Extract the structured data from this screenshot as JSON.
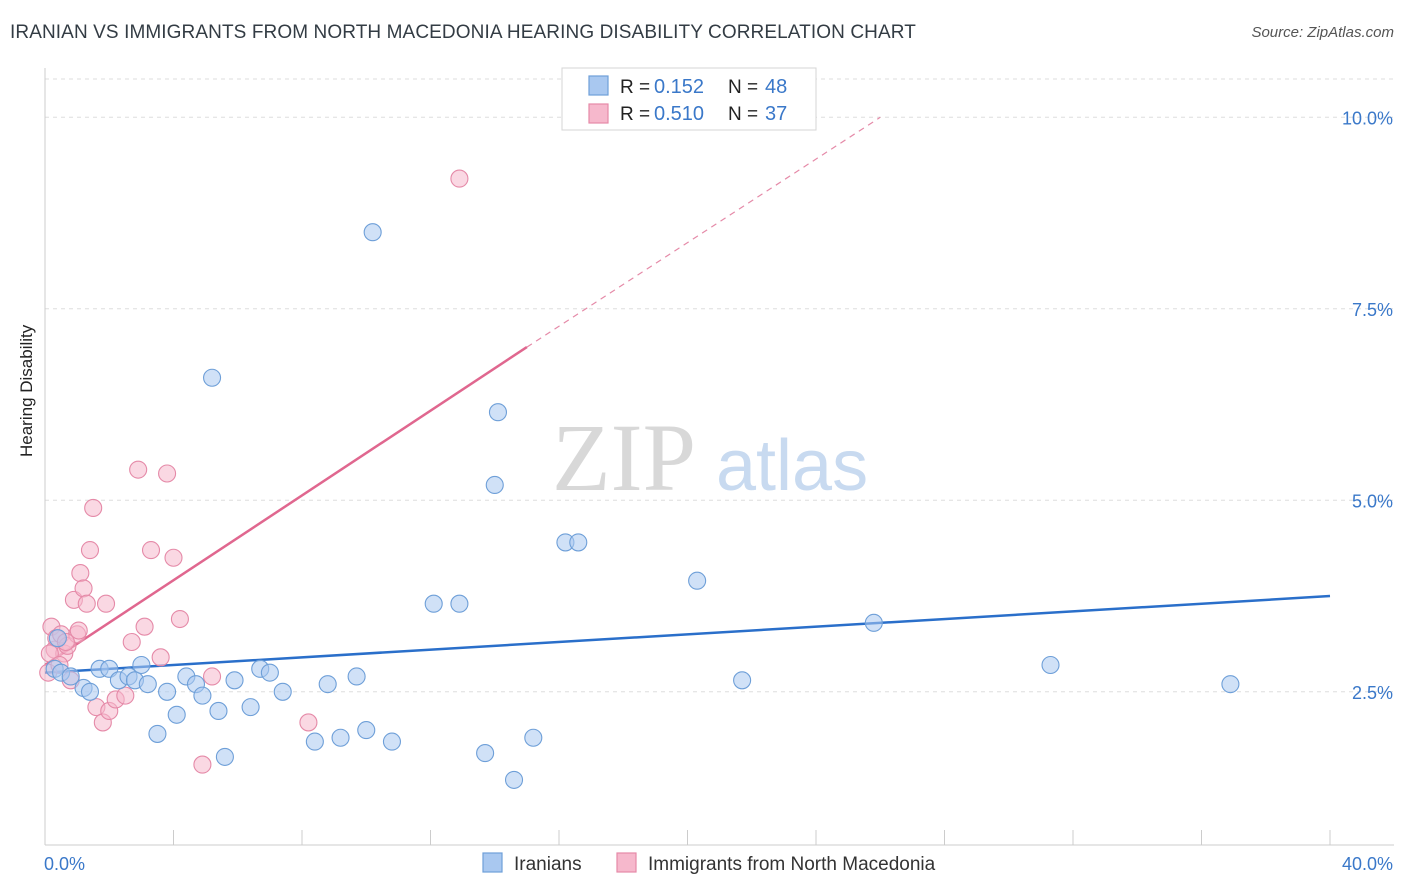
{
  "title": "IRANIAN VS IMMIGRANTS FROM NORTH MACEDONIA HEARING DISABILITY CORRELATION CHART",
  "source": "Source: ZipAtlas.com",
  "watermark": {
    "zip": "ZIP",
    "atlas": "atlas"
  },
  "legend_top": {
    "rows": [
      {
        "r_label": "R = ",
        "r_value": "0.152",
        "n_label": "N = ",
        "n_value": "48"
      },
      {
        "r_label": "R = ",
        "r_value": "0.510",
        "n_label": "N = ",
        "n_value": "37"
      }
    ]
  },
  "legend_bottom": {
    "items": [
      "Iranians",
      "Immigrants from North Macedonia"
    ]
  },
  "colors": {
    "blue_fill": "#a9c8f0",
    "blue_stroke": "#6e9fd8",
    "blue_line": "#2a6fca",
    "pink_fill": "#f6b8cc",
    "pink_stroke": "#e58aa8",
    "pink_line": "#e0678f",
    "value_text": "#3a78c9",
    "grid": "#dddddd"
  },
  "chart_data": {
    "type": "scatter",
    "title": "IRANIAN VS IMMIGRANTS FROM NORTH MACEDONIA HEARING DISABILITY CORRELATION CHART",
    "xlabel": "",
    "ylabel": "Hearing Disability",
    "xlim": [
      0,
      40
    ],
    "ylim": [
      0.5,
      10.5
    ],
    "x_ticks": [
      "0.0%",
      "40.0%"
    ],
    "y_ticks": [
      {
        "value": 2.5,
        "label": "2.5%"
      },
      {
        "value": 5.0,
        "label": "5.0%"
      },
      {
        "value": 7.5,
        "label": "7.5%"
      },
      {
        "value": 10.0,
        "label": "10.0%"
      }
    ],
    "grid": true,
    "series": [
      {
        "name": "Iranians",
        "r": 0.152,
        "n": 48,
        "trend": {
          "x": [
            0,
            40
          ],
          "y": [
            2.75,
            3.75
          ],
          "dashed_from": null
        },
        "points": [
          [
            0.3,
            2.8
          ],
          [
            0.5,
            2.75
          ],
          [
            0.8,
            2.7
          ],
          [
            1.2,
            2.55
          ],
          [
            1.4,
            2.5
          ],
          [
            1.7,
            2.8
          ],
          [
            2.0,
            2.8
          ],
          [
            2.3,
            2.65
          ],
          [
            2.6,
            2.7
          ],
          [
            2.8,
            2.65
          ],
          [
            3.0,
            2.85
          ],
          [
            3.2,
            2.6
          ],
          [
            3.5,
            1.95
          ],
          [
            3.8,
            2.5
          ],
          [
            4.1,
            2.2
          ],
          [
            4.4,
            2.7
          ],
          [
            4.7,
            2.6
          ],
          [
            4.9,
            2.45
          ],
          [
            5.2,
            6.6
          ],
          [
            5.4,
            2.25
          ],
          [
            5.6,
            1.65
          ],
          [
            5.9,
            2.65
          ],
          [
            6.4,
            2.3
          ],
          [
            6.7,
            2.8
          ],
          [
            7.0,
            2.75
          ],
          [
            7.4,
            2.5
          ],
          [
            8.4,
            1.85
          ],
          [
            8.8,
            2.6
          ],
          [
            9.2,
            1.9
          ],
          [
            9.7,
            2.7
          ],
          [
            10.0,
            2.0
          ],
          [
            10.2,
            8.5
          ],
          [
            10.8,
            1.85
          ],
          [
            12.1,
            3.65
          ],
          [
            12.9,
            3.65
          ],
          [
            13.7,
            1.7
          ],
          [
            14.1,
            6.15
          ],
          [
            14.0,
            5.2
          ],
          [
            14.6,
            1.35
          ],
          [
            15.2,
            1.9
          ],
          [
            16.2,
            4.45
          ],
          [
            16.6,
            4.45
          ],
          [
            20.3,
            3.95
          ],
          [
            21.7,
            2.65
          ],
          [
            25.8,
            3.4
          ],
          [
            31.3,
            2.85
          ],
          [
            36.9,
            2.6
          ],
          [
            0.4,
            3.2
          ]
        ]
      },
      {
        "name": "Immigrants from North Macedonia",
        "r": 0.51,
        "n": 37,
        "trend": {
          "x": [
            0,
            15
          ],
          "y": [
            2.85,
            7.0
          ],
          "dashed_to": {
            "x": 26,
            "y": 10.0
          }
        },
        "points": [
          [
            0.1,
            2.75
          ],
          [
            0.2,
            3.35
          ],
          [
            0.3,
            3.05
          ],
          [
            0.35,
            3.2
          ],
          [
            0.5,
            3.25
          ],
          [
            0.6,
            3.0
          ],
          [
            0.7,
            3.1
          ],
          [
            0.8,
            2.65
          ],
          [
            0.9,
            3.7
          ],
          [
            1.0,
            3.25
          ],
          [
            1.1,
            4.05
          ],
          [
            1.2,
            3.85
          ],
          [
            1.3,
            3.65
          ],
          [
            1.4,
            4.35
          ],
          [
            1.5,
            4.9
          ],
          [
            1.6,
            2.3
          ],
          [
            1.8,
            2.1
          ],
          [
            1.9,
            3.65
          ],
          [
            2.0,
            2.25
          ],
          [
            2.2,
            2.4
          ],
          [
            2.5,
            2.45
          ],
          [
            2.7,
            3.15
          ],
          [
            2.9,
            5.4
          ],
          [
            3.1,
            3.35
          ],
          [
            3.3,
            4.35
          ],
          [
            3.6,
            2.95
          ],
          [
            3.8,
            5.35
          ],
          [
            4.0,
            4.25
          ],
          [
            4.2,
            3.45
          ],
          [
            4.9,
            1.55
          ],
          [
            5.2,
            2.7
          ],
          [
            8.2,
            2.1
          ],
          [
            12.9,
            9.2
          ],
          [
            0.15,
            3.0
          ],
          [
            0.45,
            2.85
          ],
          [
            1.05,
            3.3
          ],
          [
            0.65,
            3.15
          ]
        ]
      }
    ]
  }
}
